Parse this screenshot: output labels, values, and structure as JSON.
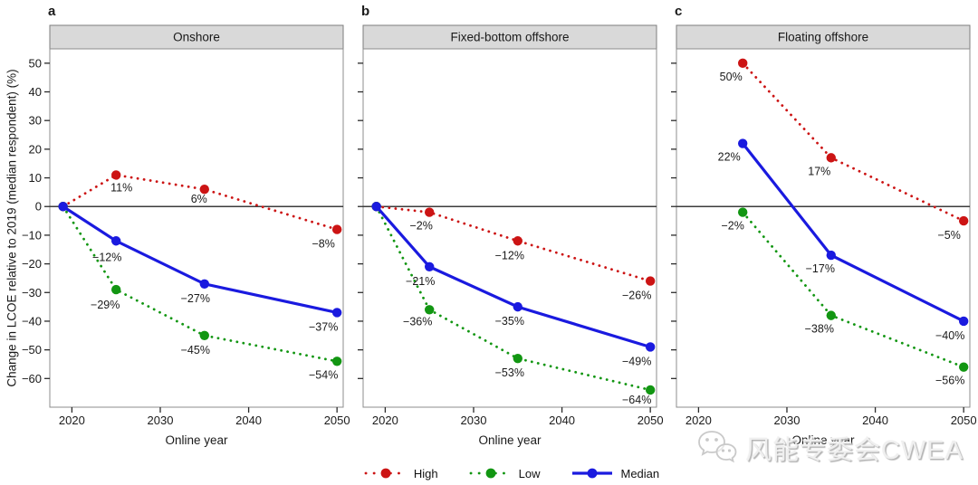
{
  "figure": {
    "ylabel": "Change in LCOE relative to 2019 (median respondent) (%)",
    "watermark": {
      "icon": "wechat-icon",
      "text": "风能专委会CWEA"
    }
  },
  "legend": [
    {
      "label": "High",
      "color": "#cc1414",
      "style": "dotted"
    },
    {
      "label": "Low",
      "color": "#129612",
      "style": "dotted"
    },
    {
      "label": "Median",
      "color": "#1a1adf",
      "style": "solid"
    }
  ],
  "chart_data": [
    {
      "type": "line",
      "panel_letter": "a",
      "title": "Onshore",
      "xlabel": "Online year",
      "xlim": [
        2017.5,
        2050.7
      ],
      "ylim": [
        -70,
        55
      ],
      "xticks": [
        2020,
        2030,
        2040,
        2050
      ],
      "yticks": [
        50,
        40,
        30,
        20,
        10,
        0,
        -10,
        -20,
        -30,
        -40,
        -50,
        -60
      ],
      "series": [
        {
          "name": "High",
          "color": "#cc1414",
          "style": "dotted",
          "points": [
            {
              "x": 2019,
              "y": 0
            },
            {
              "x": 2025,
              "y": 11,
              "label": "11%",
              "ldx": 6,
              "ldy": 18
            },
            {
              "x": 2035,
              "y": 6,
              "label": "6%",
              "ldx": -6,
              "ldy": 15
            },
            {
              "x": 2050,
              "y": -8,
              "label": "−8%",
              "ldx": -15,
              "ldy": 20
            }
          ]
        },
        {
          "name": "Low",
          "color": "#129612",
          "style": "dotted",
          "points": [
            {
              "x": 2019,
              "y": 0
            },
            {
              "x": 2025,
              "y": -29,
              "label": "−29%",
              "ldx": -12,
              "ldy": 21
            },
            {
              "x": 2035,
              "y": -45,
              "label": "−45%",
              "ldx": -10,
              "ldy": 20
            },
            {
              "x": 2050,
              "y": -54,
              "label": "−54%",
              "ldx": -15,
              "ldy": 19
            }
          ]
        },
        {
          "name": "Median",
          "color": "#1a1adf",
          "style": "solid",
          "points": [
            {
              "x": 2019,
              "y": 0
            },
            {
              "x": 2025,
              "y": -12,
              "label": "−12%",
              "ldx": -10,
              "ldy": 22
            },
            {
              "x": 2035,
              "y": -27,
              "label": "−27%",
              "ldx": -10,
              "ldy": 20
            },
            {
              "x": 2050,
              "y": -37,
              "label": "−37%",
              "ldx": -15,
              "ldy": 20
            }
          ]
        }
      ]
    },
    {
      "type": "line",
      "panel_letter": "b",
      "title": "Fixed-bottom offshore",
      "xlabel": "Online year",
      "xlim": [
        2017.5,
        2050.7
      ],
      "ylim": [
        -70,
        55
      ],
      "xticks": [
        2020,
        2030,
        2040,
        2050
      ],
      "yticks": [
        50,
        40,
        30,
        20,
        10,
        0,
        -10,
        -20,
        -30,
        -40,
        -50,
        -60
      ],
      "series": [
        {
          "name": "High",
          "color": "#cc1414",
          "style": "dotted",
          "points": [
            {
              "x": 2019,
              "y": 0
            },
            {
              "x": 2025,
              "y": -2,
              "label": "−2%",
              "ldx": -9,
              "ldy": 19
            },
            {
              "x": 2035,
              "y": -12,
              "label": "−12%",
              "ldx": -9,
              "ldy": 20
            },
            {
              "x": 2050,
              "y": -26,
              "label": "−26%",
              "ldx": -15,
              "ldy": 20
            }
          ]
        },
        {
          "name": "Low",
          "color": "#129612",
          "style": "dotted",
          "points": [
            {
              "x": 2019,
              "y": 0
            },
            {
              "x": 2025,
              "y": -36,
              "label": "−36%",
              "ldx": -13,
              "ldy": 17
            },
            {
              "x": 2035,
              "y": -53,
              "label": "−53%",
              "ldx": -9,
              "ldy": 20
            },
            {
              "x": 2050,
              "y": -64,
              "label": "−64%",
              "ldx": -15,
              "ldy": 15
            }
          ]
        },
        {
          "name": "Median",
          "color": "#1a1adf",
          "style": "solid",
          "points": [
            {
              "x": 2019,
              "y": 0
            },
            {
              "x": 2025,
              "y": -21,
              "label": "−21%",
              "ldx": -10,
              "ldy": 20
            },
            {
              "x": 2035,
              "y": -35,
              "label": "−35%",
              "ldx": -9,
              "ldy": 20
            },
            {
              "x": 2050,
              "y": -49,
              "label": "−49%",
              "ldx": -15,
              "ldy": 20
            }
          ]
        }
      ]
    },
    {
      "type": "line",
      "panel_letter": "c",
      "title": "Floating offshore",
      "xlabel": "Online year",
      "xlim": [
        2017.5,
        2050.7
      ],
      "ylim": [
        -70,
        55
      ],
      "xticks": [
        2020,
        2030,
        2040,
        2050
      ],
      "yticks": [
        50,
        40,
        30,
        20,
        10,
        0,
        -10,
        -20,
        -30,
        -40,
        -50,
        -60
      ],
      "series": [
        {
          "name": "High",
          "color": "#cc1414",
          "style": "dotted",
          "points": [
            {
              "x": 2025,
              "y": 50,
              "label": "50%",
              "ldx": -13,
              "ldy": 19
            },
            {
              "x": 2035,
              "y": 17,
              "label": "17%",
              "ldx": -13,
              "ldy": 19
            },
            {
              "x": 2050,
              "y": -5,
              "label": "−5%",
              "ldx": -16,
              "ldy": 20
            }
          ]
        },
        {
          "name": "Low",
          "color": "#129612",
          "style": "dotted",
          "points": [
            {
              "x": 2025,
              "y": -2,
              "label": "−2%",
              "ldx": -11,
              "ldy": 19
            },
            {
              "x": 2035,
              "y": -38,
              "label": "−38%",
              "ldx": -13,
              "ldy": 19
            },
            {
              "x": 2050,
              "y": -56,
              "label": "−56%",
              "ldx": -15,
              "ldy": 19
            }
          ]
        },
        {
          "name": "Median",
          "color": "#1a1adf",
          "style": "solid",
          "points": [
            {
              "x": 2025,
              "y": 22,
              "label": "22%",
              "ldx": -15,
              "ldy": 19
            },
            {
              "x": 2035,
              "y": -17,
              "label": "−17%",
              "ldx": -12,
              "ldy": 19
            },
            {
              "x": 2050,
              "y": -40,
              "label": "−40%",
              "ldx": -15,
              "ldy": 20
            }
          ]
        }
      ]
    }
  ]
}
